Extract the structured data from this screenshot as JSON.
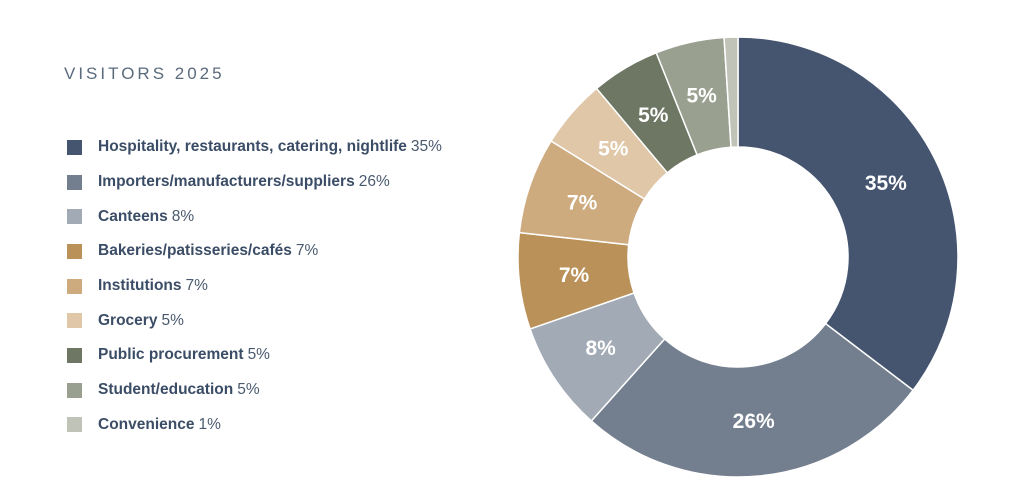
{
  "title": "VISITORS 2025",
  "chart_data": {
    "type": "pie",
    "subtype": "donut",
    "title": "VISITORS 2025",
    "legend_position": "left",
    "series": [
      {
        "label": "Hospitality, restaurants, catering, nightlife",
        "value": 35,
        "value_label": "35%",
        "color": "#455570"
      },
      {
        "label": "Importers/manufacturers/suppliers",
        "value": 26,
        "value_label": "26%",
        "color": "#737f8f"
      },
      {
        "label": "Canteens",
        "value": 8,
        "value_label": "8%",
        "color": "#a2aab5"
      },
      {
        "label": "Bakeries/patisseries/cafés",
        "value": 7,
        "value_label": "7%",
        "color": "#b99159"
      },
      {
        "label": "Institutions",
        "value": 7,
        "value_label": "7%",
        "color": "#cdab7f"
      },
      {
        "label": "Grocery",
        "value": 5,
        "value_label": "5%",
        "color": "#dfc7a8"
      },
      {
        "label": "Public procurement",
        "value": 5,
        "value_label": "5%",
        "color": "#6e7763"
      },
      {
        "label": "Student/education",
        "value": 5,
        "value_label": "5%",
        "color": "#9aa090"
      },
      {
        "label": "Convenience",
        "value": 1,
        "value_label": "1%",
        "color": "#c0c4b8"
      }
    ]
  }
}
